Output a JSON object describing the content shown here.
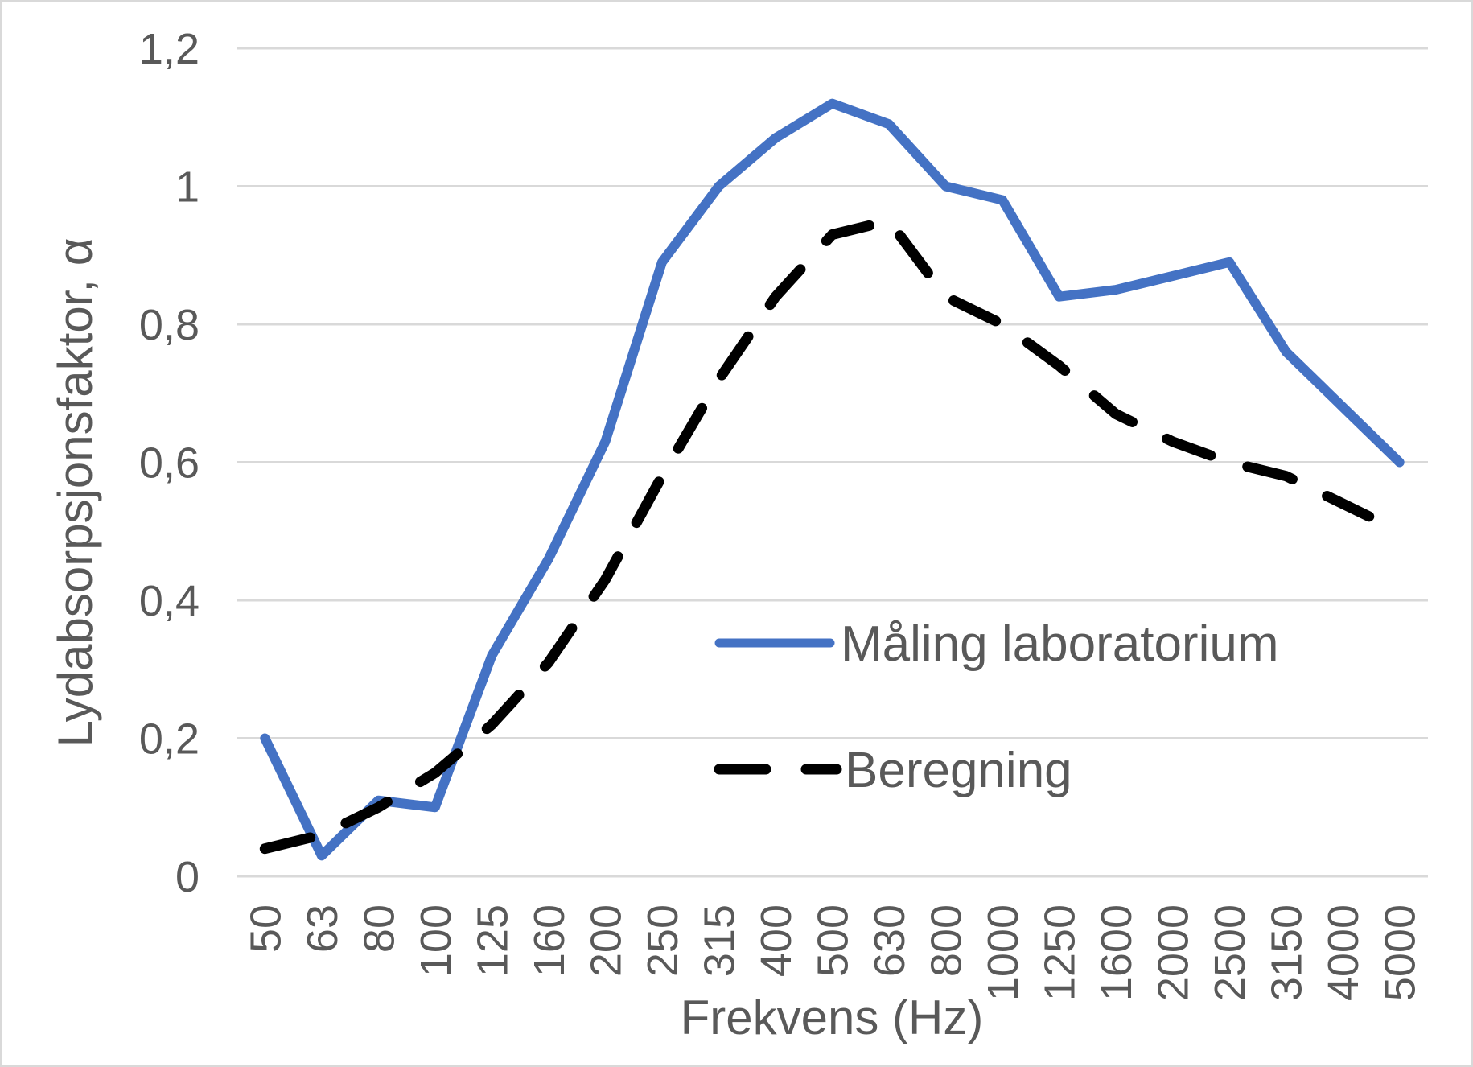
{
  "chart_data": {
    "type": "line",
    "title": "",
    "xlabel": "Frekvens (Hz)",
    "ylabel": "Lydabsorpsjonsfaktor, α",
    "categories": [
      "50",
      "63",
      "80",
      "100",
      "125",
      "160",
      "200",
      "250",
      "315",
      "400",
      "500",
      "630",
      "800",
      "1000",
      "1250",
      "1600",
      "2000",
      "2500",
      "3150",
      "4000",
      "5000"
    ],
    "series": [
      {
        "name": "Måling laboratorium",
        "color": "#4472C4",
        "style": "solid",
        "values": [
          0.2,
          0.03,
          0.11,
          0.1,
          0.32,
          0.46,
          0.63,
          0.89,
          1.0,
          1.07,
          1.12,
          1.09,
          1.0,
          0.98,
          0.84,
          0.85,
          0.87,
          0.89,
          0.76,
          0.68,
          0.6
        ]
      },
      {
        "name": "Beregning",
        "color": "#000000",
        "style": "dashed",
        "values": [
          0.04,
          0.06,
          0.1,
          0.15,
          0.22,
          0.31,
          0.43,
          0.58,
          0.72,
          0.84,
          0.93,
          0.95,
          0.84,
          0.8,
          0.74,
          0.67,
          0.63,
          0.6,
          0.58,
          0.54,
          0.5
        ]
      }
    ],
    "ylim": [
      0,
      1.2
    ],
    "ytick_values": [
      0,
      0.2,
      0.4,
      0.6,
      0.8,
      1.0,
      1.2
    ],
    "ytick_labels": [
      "0",
      "0,2",
      "0,4",
      "0,6",
      "0,8",
      "1",
      "1,2"
    ],
    "grid": "horizontal-only",
    "legend_position": "inside-right-middle"
  },
  "colors": {
    "series_measurement": "#4472C4",
    "series_calculation": "#000000",
    "gridline": "#d9d9d9",
    "text": "#595959",
    "canvas_border": "#d9d9d9",
    "background": "#ffffff"
  }
}
